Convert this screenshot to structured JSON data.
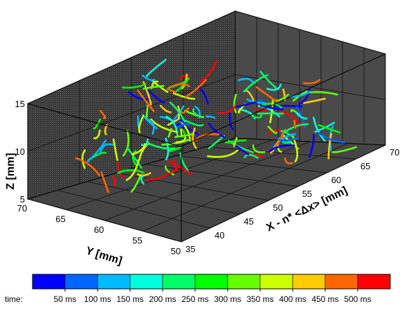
{
  "chart_data": {
    "type": "scatter",
    "subtype": "3d-trajectories",
    "title": "",
    "axes": {
      "x": {
        "label": "X - n* <Δx> [mm]",
        "range": [
          35,
          70
        ],
        "ticks": [
          "35",
          "40",
          "45",
          "50",
          "55",
          "60",
          "65",
          "70"
        ]
      },
      "y": {
        "label": "Y [mm]",
        "range": [
          50,
          70
        ],
        "ticks": [
          "70",
          "65",
          "60",
          "55",
          "50"
        ]
      },
      "z": {
        "label": "Z [mm]",
        "range": [
          5,
          15
        ],
        "ticks": [
          "15",
          "10",
          "5"
        ]
      }
    },
    "grid": true,
    "colorbar": {
      "title": "time:",
      "position": "bottom",
      "colors": [
        "#0000ff",
        "#0066ff",
        "#00bbff",
        "#00ffdd",
        "#00ff66",
        "#00ff00",
        "#66ff00",
        "#ccff00",
        "#ffcc00",
        "#ff6600",
        "#ff0000"
      ],
      "labels": [
        "50 ms",
        "100 ms",
        "150 ms",
        "200 ms",
        "250 ms",
        "300 ms",
        "350 ms",
        "400 ms",
        "450 ms",
        "500 ms"
      ]
    }
  }
}
